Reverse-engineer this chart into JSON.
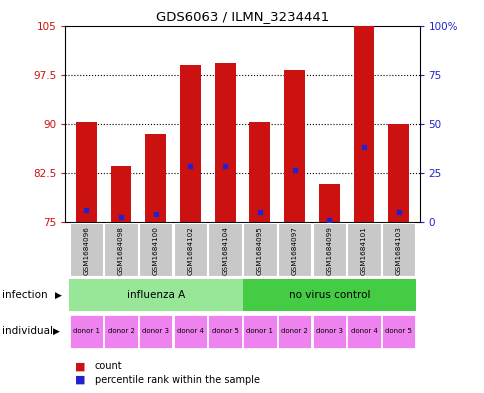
{
  "title": "GDS6063 / ILMN_3234441",
  "samples": [
    "GSM1684096",
    "GSM1684098",
    "GSM1684100",
    "GSM1684102",
    "GSM1684104",
    "GSM1684095",
    "GSM1684097",
    "GSM1684099",
    "GSM1684101",
    "GSM1684103"
  ],
  "bar_heights": [
    90.3,
    83.5,
    88.5,
    99.0,
    99.3,
    90.2,
    98.2,
    80.8,
    105.0,
    90.0
  ],
  "blue_markers": [
    76.8,
    75.8,
    76.2,
    83.5,
    83.5,
    76.5,
    83.0,
    75.3,
    86.5,
    76.5
  ],
  "ylim_left": [
    75,
    105
  ],
  "ylim_right": [
    0,
    100
  ],
  "yticks_left": [
    75,
    82.5,
    90,
    97.5,
    105
  ],
  "yticks_right": [
    0,
    25,
    50,
    75,
    100
  ],
  "ytick_labels_left": [
    "75",
    "82.5",
    "90",
    "97.5",
    "105"
  ],
  "ytick_labels_right": [
    "0",
    "25",
    "50",
    "75",
    "100%"
  ],
  "infection_groups": [
    {
      "label": "influenza A",
      "color": "#98E698"
    },
    {
      "label": "no virus control",
      "color": "#44CC44"
    }
  ],
  "donors": [
    "donor 1",
    "donor 2",
    "donor 3",
    "donor 4",
    "donor 5",
    "donor 1",
    "donor 2",
    "donor 3",
    "donor 4",
    "donor 5"
  ],
  "individual_color": "#EE82EE",
  "bar_color": "#CC1111",
  "blue_color": "#2222CC",
  "bg_plot": "#FFFFFF",
  "label_color_left": "#CC1111",
  "label_color_right": "#2222CC",
  "sample_bg_color": "#C8C8C8",
  "border_color": "#000000"
}
